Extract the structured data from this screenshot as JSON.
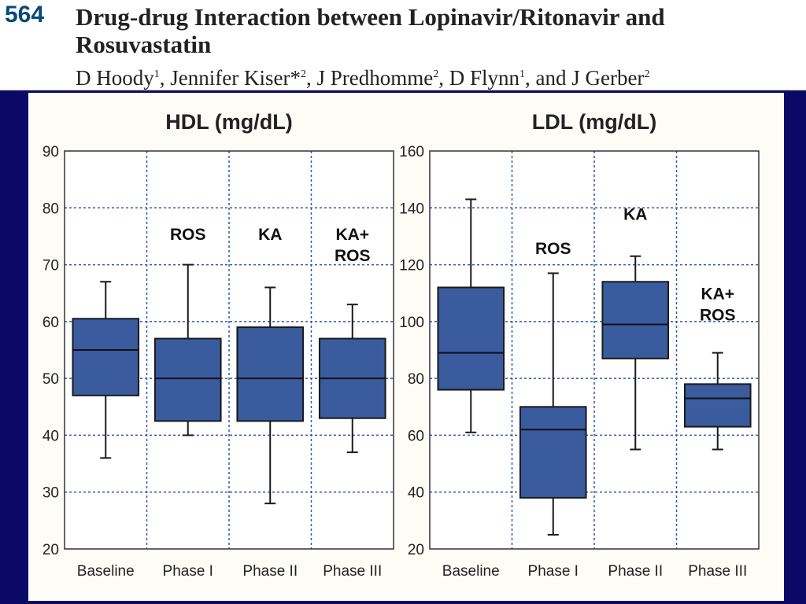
{
  "header": {
    "abstract_number": "564",
    "title": "Drug-drug Interaction between Lopinavir/Ritonavir and Rosuvastatin",
    "authors": [
      {
        "name": "D Hoody",
        "sup": "1",
        "sep": ", "
      },
      {
        "name": "Jennifer Kiser*",
        "sup": "2",
        "sep": ", "
      },
      {
        "name": "J Predhomme",
        "sup": "2",
        "sep": ", "
      },
      {
        "name": "D Flynn",
        "sup": "1",
        "sep": ", and "
      },
      {
        "name": "J Gerber",
        "sup": "2",
        "sep": ""
      }
    ]
  },
  "colors": {
    "box_fill": "#3a5b9e",
    "box_stroke": "#1a1a1a",
    "grid": "#2f5aa8",
    "slide_background": "#0a0a66"
  },
  "chart_data": [
    {
      "type": "boxplot",
      "title": "HDL (mg/dL)",
      "categories": [
        "Baseline",
        "Phase I",
        "Phase II",
        "Phase III"
      ],
      "ylim": [
        20,
        90
      ],
      "yticks": [
        20,
        30,
        40,
        50,
        60,
        70,
        80,
        90
      ],
      "grid": true,
      "boxes": [
        {
          "min": 36,
          "q1": 47,
          "median": 55,
          "q3": 60.5,
          "max": 67
        },
        {
          "min": 40,
          "q1": 42.5,
          "median": 50,
          "q3": 57,
          "max": 70
        },
        {
          "min": 28,
          "q1": 42.5,
          "median": 50,
          "q3": 59,
          "max": 66
        },
        {
          "min": 37,
          "q1": 43,
          "median": 50,
          "q3": 57,
          "max": 63
        }
      ],
      "annotations": [
        {
          "lines": [
            "ROS"
          ],
          "category": 1,
          "y": 75.5
        },
        {
          "lines": [
            "KA"
          ],
          "category": 2,
          "y": 75.5
        },
        {
          "lines": [
            "KA+",
            "ROS"
          ],
          "category": 3,
          "y": 75.5
        }
      ]
    },
    {
      "type": "boxplot",
      "title": "LDL (mg/dL)",
      "categories": [
        "Baseline",
        "Phase I",
        "Phase II",
        "Phase III"
      ],
      "ylim": [
        20,
        160
      ],
      "yticks": [
        20,
        40,
        60,
        80,
        100,
        120,
        140,
        160
      ],
      "grid": true,
      "boxes": [
        {
          "min": 61,
          "q1": 76,
          "median": 89,
          "q3": 112,
          "max": 143
        },
        {
          "min": 25,
          "q1": 38,
          "median": 62,
          "q3": 70,
          "max": 117
        },
        {
          "min": 55,
          "q1": 87,
          "median": 99,
          "q3": 114,
          "max": 123
        },
        {
          "min": 55,
          "q1": 63,
          "median": 73,
          "q3": 78,
          "max": 89
        }
      ],
      "annotations": [
        {
          "lines": [
            "ROS"
          ],
          "category": 1,
          "y": 126
        },
        {
          "lines": [
            "KA"
          ],
          "category": 2,
          "y": 138
        },
        {
          "lines": [
            "KA+",
            "ROS"
          ],
          "category": 3,
          "y": 110
        }
      ]
    }
  ]
}
